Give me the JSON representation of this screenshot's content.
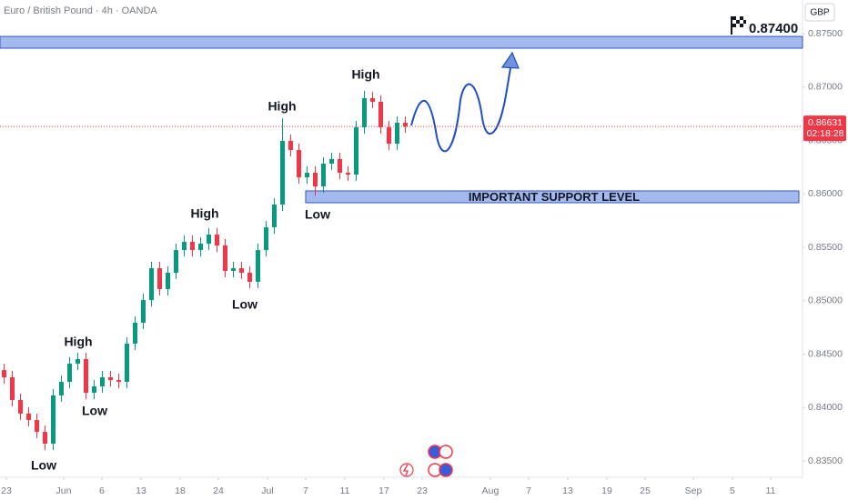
{
  "chart_data": {
    "type": "candlestick",
    "title": "Euro / British Pound · 4h · OANDA",
    "currency": "GBP",
    "up_color": "#089981",
    "down_color": "#f23645",
    "x": [
      0,
      1,
      2,
      3,
      4,
      5,
      6,
      7,
      8,
      9,
      10,
      11,
      12,
      13,
      14,
      15,
      16,
      17,
      18,
      19,
      20,
      21,
      22,
      23,
      24,
      25,
      26,
      27,
      28,
      29,
      30,
      31,
      32,
      33,
      34,
      35,
      36,
      37,
      38,
      39,
      40,
      41,
      42,
      43,
      44,
      45,
      46,
      47,
      48,
      49
    ],
    "open": [
      0.8435,
      0.84283,
      0.8407,
      0.83943,
      0.83883,
      0.83772,
      0.83662,
      0.84113,
      0.8424,
      0.84411,
      0.84453,
      0.84138,
      0.84198,
      0.84283,
      0.84257,
      0.8424,
      0.84598,
      0.84794,
      0.85006,
      0.85304,
      0.85109,
      0.85262,
      0.85474,
      0.85551,
      0.85474,
      0.85534,
      0.85619,
      0.85517,
      0.85279,
      0.85304,
      0.85262,
      0.85177,
      0.85474,
      0.85687,
      0.859,
      0.86496,
      0.86411,
      0.86155,
      0.86198,
      0.8607,
      0.86283,
      0.86326,
      0.86198,
      0.86181,
      0.86623,
      0.86896,
      0.86862,
      0.86623,
      0.8647,
      0.86666
    ],
    "high": [
      0.8441,
      0.84343,
      0.8413,
      0.84003,
      0.83943,
      0.83832,
      0.84173,
      0.843,
      0.84471,
      0.84513,
      0.84513,
      0.84258,
      0.84343,
      0.84343,
      0.84317,
      0.84658,
      0.84854,
      0.85066,
      0.85364,
      0.85364,
      0.85322,
      0.85534,
      0.85611,
      0.85611,
      0.85594,
      0.85679,
      0.85679,
      0.85577,
      0.85364,
      0.85364,
      0.85322,
      0.85534,
      0.85747,
      0.8596,
      0.86708,
      0.86556,
      0.86471,
      0.86258,
      0.86258,
      0.86343,
      0.86386,
      0.86386,
      0.86258,
      0.86683,
      0.86964,
      0.86956,
      0.86922,
      0.86683,
      0.86726,
      0.86726
    ],
    "low": [
      0.84223,
      0.8401,
      0.83883,
      0.83823,
      0.83712,
      0.836,
      0.83602,
      0.84053,
      0.8418,
      0.84351,
      0.84078,
      0.84078,
      0.84138,
      0.84197,
      0.8418,
      0.8418,
      0.84538,
      0.84734,
      0.84946,
      0.85049,
      0.85049,
      0.85202,
      0.85414,
      0.85414,
      0.85414,
      0.85474,
      0.85457,
      0.85219,
      0.85219,
      0.85202,
      0.85117,
      0.85117,
      0.85414,
      0.85627,
      0.8584,
      0.86351,
      0.86095,
      0.86095,
      0.8598,
      0.8601,
      0.86223,
      0.86138,
      0.86121,
      0.86121,
      0.86563,
      0.86802,
      0.86563,
      0.8641,
      0.8641,
      0.86571
    ],
    "close": [
      0.84283,
      0.8407,
      0.83943,
      0.83883,
      0.83772,
      0.83662,
      0.84113,
      0.8424,
      0.84411,
      0.84453,
      0.84138,
      0.84198,
      0.84283,
      0.84257,
      0.8424,
      0.84598,
      0.84794,
      0.85006,
      0.85304,
      0.85109,
      0.85262,
      0.85474,
      0.85551,
      0.85474,
      0.85534,
      0.85619,
      0.85517,
      0.85279,
      0.85304,
      0.85262,
      0.85177,
      0.85474,
      0.85687,
      0.859,
      0.86496,
      0.86411,
      0.86155,
      0.86198,
      0.8607,
      0.86283,
      0.86326,
      0.86198,
      0.86181,
      0.86623,
      0.86896,
      0.86862,
      0.86623,
      0.8647,
      0.86666,
      0.86631
    ],
    "xlim": [
      -0.5,
      97.5
    ],
    "xticks": [
      {
        "value": 0.28,
        "label": "23"
      },
      {
        "value": 7.28,
        "label": "Jun"
      },
      {
        "value": 11.94,
        "label": "6"
      },
      {
        "value": 16.72,
        "label": "13"
      },
      {
        "value": 21.5,
        "label": "18"
      },
      {
        "value": 26.17,
        "label": "24"
      },
      {
        "value": 32.17,
        "label": "Jul"
      },
      {
        "value": 36.83,
        "label": "7"
      },
      {
        "value": 41.61,
        "label": "11"
      },
      {
        "value": 46.39,
        "label": "17"
      },
      {
        "value": 51.06,
        "label": "23"
      },
      {
        "value": 59.39,
        "label": "Aug"
      },
      {
        "value": 64.06,
        "label": "7"
      },
      {
        "value": 68.83,
        "label": "13"
      },
      {
        "value": 73.61,
        "label": "19"
      },
      {
        "value": 78.28,
        "label": "25"
      },
      {
        "value": 84.17,
        "label": "Sep"
      },
      {
        "value": 88.94,
        "label": "5"
      },
      {
        "value": 93.61,
        "label": "11"
      }
    ],
    "ylim": [
      0.83347,
      0.87815
    ],
    "yticks": [
      {
        "value": 0.835,
        "label": "0.83500"
      },
      {
        "value": 0.84,
        "label": "0.84000"
      },
      {
        "value": 0.845,
        "label": "0.84500"
      },
      {
        "value": 0.85,
        "label": "0.85000"
      },
      {
        "value": 0.855,
        "label": "0.85500"
      },
      {
        "value": 0.86,
        "label": "0.86000"
      },
      {
        "value": 0.865,
        "label": "0.86500"
      },
      {
        "value": 0.87,
        "label": "0.87000"
      },
      {
        "value": 0.875,
        "label": "0.87500"
      }
    ],
    "zones": [
      {
        "start": -0.5,
        "low": 0.87364,
        "high": 0.87474
      },
      {
        "start": 36.83,
        "low": 0.85917,
        "high": 0.86028,
        "label": "IMPORTANT SUPPORT LEVEL"
      }
    ],
    "target_label": "0.87400",
    "last_price": {
      "value": 0.86631,
      "label": "0.86631",
      "countdown": "02:18:28"
    },
    "annotations": [
      "Low",
      "Low",
      "High",
      "Low",
      "High",
      "Low",
      "High",
      "High"
    ]
  }
}
